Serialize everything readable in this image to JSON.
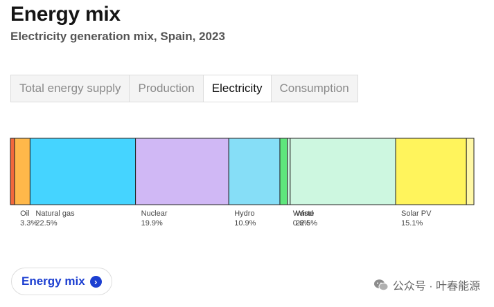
{
  "header": {
    "title": "Energy mix",
    "subtitle": "Electricity generation mix, Spain, 2023"
  },
  "tabs": [
    {
      "label": "Total energy supply",
      "active": false
    },
    {
      "label": "Production",
      "active": false
    },
    {
      "label": "Electricity",
      "active": true
    },
    {
      "label": "Consumption",
      "active": false
    }
  ],
  "chart_data": {
    "type": "bar",
    "stacked_100": true,
    "orientation": "horizontal",
    "unit": "%",
    "segments": [
      {
        "name": "",
        "value": 0.9,
        "label": "",
        "color": "#f2683c"
      },
      {
        "name": "Oil",
        "value": 3.3,
        "label": "3.3%",
        "color": "#ffb84a"
      },
      {
        "name": "Natural gas",
        "value": 22.5,
        "label": "22.5%",
        "color": "#45d4ff"
      },
      {
        "name": "Nuclear",
        "value": 19.9,
        "label": "19.9%",
        "color": "#d0b8f5"
      },
      {
        "name": "Hydro",
        "value": 10.9,
        "label": "10.9%",
        "color": "#86def7"
      },
      {
        "name": "",
        "value": 1.6,
        "label": "",
        "color": "#5fe67c"
      },
      {
        "name": "Waste",
        "value": 0.6,
        "label": "0.6%",
        "color": "#cdf7e0"
      },
      {
        "name": "Wind",
        "value": 22.5,
        "label": "22.5%",
        "color": "#cdf7e0"
      },
      {
        "name": "Solar PV",
        "value": 15.1,
        "label": "15.1%",
        "color": "#fff45c"
      },
      {
        "name": "",
        "value": 1.6,
        "label": "",
        "color": "#fff8a6"
      }
    ]
  },
  "button": {
    "label": "Energy mix"
  },
  "watermark": {
    "text": "公众号 · 叶春能源"
  }
}
